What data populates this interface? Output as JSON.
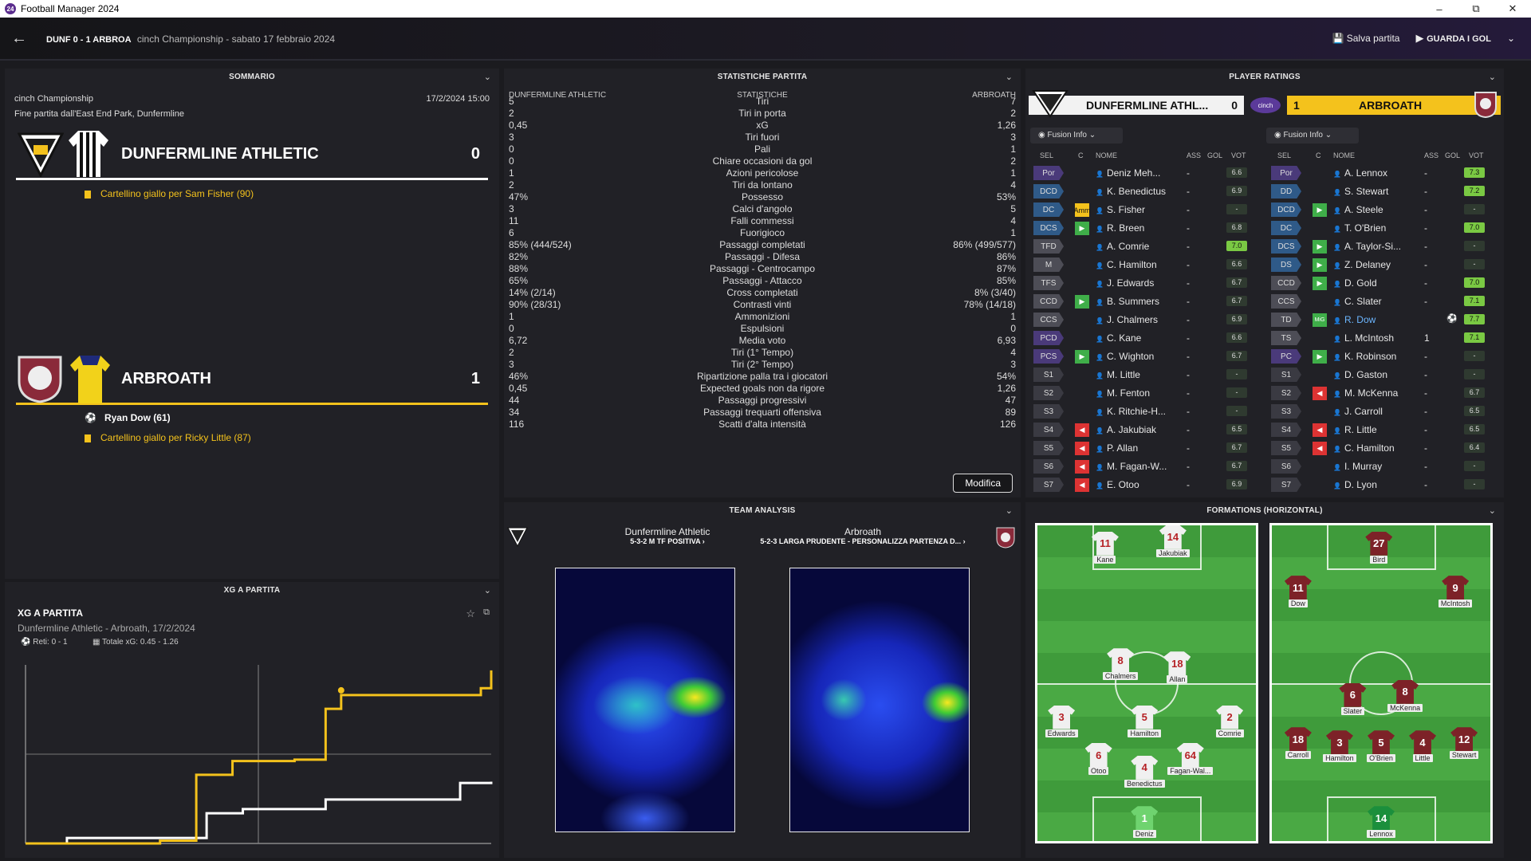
{
  "app": {
    "title": "Football Manager 2024",
    "logo": "24"
  },
  "header": {
    "match": "DUNF 0 - 1 ARBROA",
    "context": "cinch Championship - sabato 17 febbraio 2024",
    "save": "Salva partita",
    "highlights": "GUARDA I GOL"
  },
  "summary": {
    "title": "SOMMARIO",
    "competition": "cinch Championship",
    "datetime": "17/2/2024 15:00",
    "venue": "Fine partita dall'East End Park, Dunfermline",
    "home": {
      "name": "DUNFERMLINE ATHLETIC",
      "score": "0",
      "events": [
        "Cartellino giallo per Sam Fisher (90)"
      ]
    },
    "away": {
      "name": "ARBROATH",
      "score": "1",
      "goal": "Ryan Dow (61)",
      "events": [
        "Cartellino giallo per Ricky Little (87)"
      ]
    }
  },
  "xg": {
    "title": "XG A PARTITA",
    "subtitle": "XG A PARTITA",
    "match": "Dunfermline Athletic - Arbroath, 17/2/2024",
    "goals": "Reti: 0 - 1",
    "total": "Totale xG: 0.45 - 1.26"
  },
  "stats": {
    "title": "STATISTICHE PARTITA",
    "home": "DUNFERMLINE ATHLETIC",
    "mid": "STATISTICHE",
    "away": "ARBROATH",
    "edit": "Modifica",
    "rows": [
      [
        "5",
        "Tiri",
        "7"
      ],
      [
        "2",
        "Tiri in porta",
        "2"
      ],
      [
        "0,45",
        "xG",
        "1,26"
      ],
      [
        "3",
        "Tiri fuori",
        "3"
      ],
      [
        "0",
        "Pali",
        "1"
      ],
      [
        "0",
        "Chiare occasioni da gol",
        "2"
      ],
      [
        "1",
        "Azioni pericolose",
        "1"
      ],
      [
        "2",
        "Tiri da lontano",
        "4"
      ],
      [
        "47%",
        "Possesso",
        "53%"
      ],
      [
        "3",
        "Calci d'angolo",
        "5"
      ],
      [
        "11",
        "Falli commessi",
        "4"
      ],
      [
        "6",
        "Fuorigioco",
        "1"
      ],
      [
        "85% (444/524)",
        "Passaggi completati",
        "86% (499/577)"
      ],
      [
        "82%",
        "Passaggi - Difesa",
        "86%"
      ],
      [
        "88%",
        "Passaggi - Centrocampo",
        "87%"
      ],
      [
        "65%",
        "Passaggi - Attacco",
        "85%"
      ],
      [
        "14% (2/14)",
        "Cross completati",
        "8% (3/40)"
      ],
      [
        "90% (28/31)",
        "Contrasti vinti",
        "78% (14/18)"
      ],
      [
        "1",
        "Ammonizioni",
        "1"
      ],
      [
        "0",
        "Espulsioni",
        "0"
      ],
      [
        "6,72",
        "Media voto",
        "6,93"
      ],
      [
        "2",
        "Tiri (1° Tempo)",
        "4"
      ],
      [
        "3",
        "Tiri (2° Tempo)",
        "3"
      ],
      [
        "46%",
        "Ripartizione palla tra i giocatori",
        "54%"
      ],
      [
        "0,45",
        "Expected goals non da rigore",
        "1,26"
      ],
      [
        "44",
        "Passaggi progressivi",
        "47"
      ],
      [
        "34",
        "Passaggi trequarti offensiva",
        "89"
      ],
      [
        "116",
        "Scatti d'alta intensità",
        "126"
      ]
    ]
  },
  "team_analysis": {
    "title": "TEAM ANALYSIS",
    "home": "Dunfermline Athletic",
    "home_tactic": "5-3-2 M TF POSITIVA",
    "away": "Arbroath",
    "away_tactic": "5-2-3 LARGA PRUDENTE - PERSONALIZZA PARTENZA D..."
  },
  "ratings": {
    "title": "PLAYER RATINGS",
    "home_name": "DUNFERMLINE ATHL...",
    "home_score": "0",
    "away_score": "1",
    "away_name": "ARBROATH",
    "fusion": "Fusion Info",
    "cols": [
      "SEL",
      "C",
      "NOME",
      "ASS",
      "GOL",
      "VOT"
    ],
    "home": [
      [
        "Por",
        "",
        "Deniz Meh...",
        "-",
        "6.6",
        ""
      ],
      [
        "DCD",
        "",
        "K. Benedictus",
        "-",
        "6.9",
        ""
      ],
      [
        "DC",
        "Amm",
        "S. Fisher",
        "-",
        "-",
        ""
      ],
      [
        "DCS",
        "in",
        "R. Breen",
        "-",
        "6.8",
        ""
      ],
      [
        "TFD",
        "",
        "A. Comrie",
        "-",
        "7.0",
        "g"
      ],
      [
        "M",
        "",
        "C. Hamilton",
        "-",
        "6.6",
        ""
      ],
      [
        "TFS",
        "",
        "J. Edwards",
        "-",
        "6.7",
        ""
      ],
      [
        "CCD",
        "in",
        "B. Summers",
        "-",
        "6.7",
        ""
      ],
      [
        "CCS",
        "",
        "J. Chalmers",
        "-",
        "6.9",
        ""
      ],
      [
        "PCD",
        "",
        "C. Kane",
        "-",
        "6.6",
        ""
      ],
      [
        "PCS",
        "in",
        "C. Wighton",
        "-",
        "6.7",
        ""
      ],
      [
        "S1",
        "",
        "M. Little",
        "-",
        "-",
        ""
      ],
      [
        "S2",
        "",
        "M. Fenton",
        "-",
        "-",
        ""
      ],
      [
        "S3",
        "",
        "K. Ritchie-H...",
        "-",
        "-",
        ""
      ],
      [
        "S4",
        "out",
        "A. Jakubiak",
        "-",
        "6.5",
        ""
      ],
      [
        "S5",
        "out",
        "P. Allan",
        "-",
        "6.7",
        ""
      ],
      [
        "S6",
        "out",
        "M. Fagan-W...",
        "-",
        "6.7",
        ""
      ],
      [
        "S7",
        "out",
        "E. Otoo",
        "-",
        "6.9",
        ""
      ]
    ],
    "away": [
      [
        "Por",
        "",
        "A. Lennox",
        "-",
        "7.3",
        "g"
      ],
      [
        "DD",
        "",
        "S. Stewart",
        "-",
        "7.2",
        "g"
      ],
      [
        "DCD",
        "in",
        "A. Steele",
        "-",
        "-",
        ""
      ],
      [
        "DC",
        "",
        "T. O'Brien",
        "-",
        "7.0",
        "g"
      ],
      [
        "DCS",
        "in",
        "A. Taylor-Si...",
        "-",
        "-",
        ""
      ],
      [
        "DS",
        "in",
        "Z. Delaney",
        "-",
        "-",
        ""
      ],
      [
        "CCD",
        "in",
        "D. Gold",
        "-",
        "7.0",
        "g"
      ],
      [
        "CCS",
        "",
        "C. Slater",
        "-",
        "7.1",
        "g"
      ],
      [
        "TD",
        "MiG",
        "R. Dow",
        "",
        "7.7",
        "g"
      ],
      [
        "TS",
        "",
        "L. McIntosh",
        "1",
        "7.1",
        "g"
      ],
      [
        "PC",
        "in",
        "K. Robinson",
        "-",
        "-",
        ""
      ],
      [
        "S1",
        "",
        "D. Gaston",
        "-",
        "-",
        ""
      ],
      [
        "S2",
        "out",
        "M. McKenna",
        "-",
        "6.7",
        ""
      ],
      [
        "S3",
        "",
        "J. Carroll",
        "-",
        "6.5",
        ""
      ],
      [
        "S4",
        "out",
        "R. Little",
        "-",
        "6.5",
        ""
      ],
      [
        "S5",
        "out",
        "C. Hamilton",
        "-",
        "6.4",
        ""
      ],
      [
        "S6",
        "",
        "I. Murray",
        "-",
        "-",
        ""
      ],
      [
        "S7",
        "",
        "D. Lyon",
        "-",
        "-",
        ""
      ]
    ]
  },
  "formations": {
    "title": "FORMATIONS (HORIZONTAL)",
    "home": [
      [
        "11",
        "Kane",
        31,
        7
      ],
      [
        "14",
        "Jakubiak",
        62,
        5
      ],
      [
        "8",
        "Chalmers",
        38,
        44
      ],
      [
        "18",
        "Allan",
        64,
        45
      ],
      [
        "3",
        "Edwards",
        11,
        62
      ],
      [
        "5",
        "Hamilton",
        49,
        62
      ],
      [
        "2",
        "Comrie",
        88,
        62
      ],
      [
        "6",
        "Otoo",
        28,
        74
      ],
      [
        "4",
        "Benedictus",
        49,
        78
      ],
      [
        "64",
        "Fagan-Wal...",
        70,
        74
      ],
      [
        "1",
        "Deniz",
        49,
        94
      ]
    ],
    "away": [
      [
        "27",
        "Bird",
        49,
        7
      ],
      [
        "11",
        "Dow",
        12,
        21
      ],
      [
        "9",
        "McIntosh",
        84,
        21
      ],
      [
        "6",
        "Slater",
        37,
        55
      ],
      [
        "8",
        "McKenna",
        61,
        54
      ],
      [
        "18",
        "Carroll",
        12,
        69
      ],
      [
        "3",
        "Hamilton",
        31,
        70
      ],
      [
        "5",
        "O'Brien",
        50,
        70
      ],
      [
        "4",
        "Little",
        69,
        70
      ],
      [
        "12",
        "Stewart",
        88,
        69
      ],
      [
        "14",
        "Lennox",
        50,
        94
      ]
    ]
  },
  "chart_data": {
    "type": "line",
    "title": "XG A PARTITA",
    "x": [
      0,
      90
    ],
    "series": [
      {
        "name": "Dunfermline Athletic",
        "values": [
          [
            0,
            0
          ],
          [
            8,
            0.04
          ],
          [
            30,
            0.04
          ],
          [
            35,
            0.22
          ],
          [
            38,
            0.22
          ],
          [
            42,
            0.25
          ],
          [
            55,
            0.25
          ],
          [
            58,
            0.32
          ],
          [
            83,
            0.32
          ],
          [
            84,
            0.44
          ],
          [
            90,
            0.45
          ]
        ]
      },
      {
        "name": "Arbroath",
        "values": [
          [
            0,
            0
          ],
          [
            26,
            0.02
          ],
          [
            33,
            0.5
          ],
          [
            40,
            0.6
          ],
          [
            52,
            0.61
          ],
          [
            58,
            0.98
          ],
          [
            61,
            1.08
          ],
          [
            88,
            1.13
          ],
          [
            90,
            1.26
          ]
        ]
      }
    ],
    "ylim": [
      0,
      1.3
    ]
  }
}
